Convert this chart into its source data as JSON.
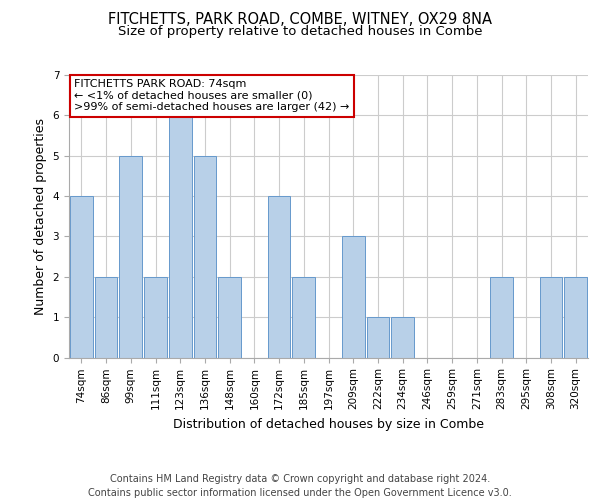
{
  "title1": "FITCHETTS, PARK ROAD, COMBE, WITNEY, OX29 8NA",
  "title2": "Size of property relative to detached houses in Combe",
  "xlabel": "Distribution of detached houses by size in Combe",
  "ylabel": "Number of detached properties",
  "categories": [
    "74sqm",
    "86sqm",
    "99sqm",
    "111sqm",
    "123sqm",
    "136sqm",
    "148sqm",
    "160sqm",
    "172sqm",
    "185sqm",
    "197sqm",
    "209sqm",
    "222sqm",
    "234sqm",
    "246sqm",
    "259sqm",
    "271sqm",
    "283sqm",
    "295sqm",
    "308sqm",
    "320sqm"
  ],
  "values": [
    4,
    2,
    5,
    2,
    6,
    5,
    2,
    0,
    4,
    2,
    0,
    3,
    1,
    1,
    0,
    0,
    0,
    2,
    0,
    2,
    2
  ],
  "bar_color": "#b8d0e8",
  "bar_edgecolor": "#6699cc",
  "annotation_line1": "FITCHETTS PARK ROAD: 74sqm",
  "annotation_line2": "← <1% of detached houses are smaller (0)",
  "annotation_line3": ">99% of semi-detached houses are larger (42) →",
  "annotation_box_edgecolor": "#cc0000",
  "ylim": [
    0,
    7
  ],
  "yticks": [
    0,
    1,
    2,
    3,
    4,
    5,
    6,
    7
  ],
  "footer_text": "Contains HM Land Registry data © Crown copyright and database right 2024.\nContains public sector information licensed under the Open Government Licence v3.0.",
  "bg_color": "#ffffff",
  "grid_color": "#cccccc",
  "title_fontsize": 10.5,
  "subtitle_fontsize": 9.5,
  "axis_label_fontsize": 9,
  "tick_fontsize": 7.5,
  "footer_fontsize": 7.0
}
